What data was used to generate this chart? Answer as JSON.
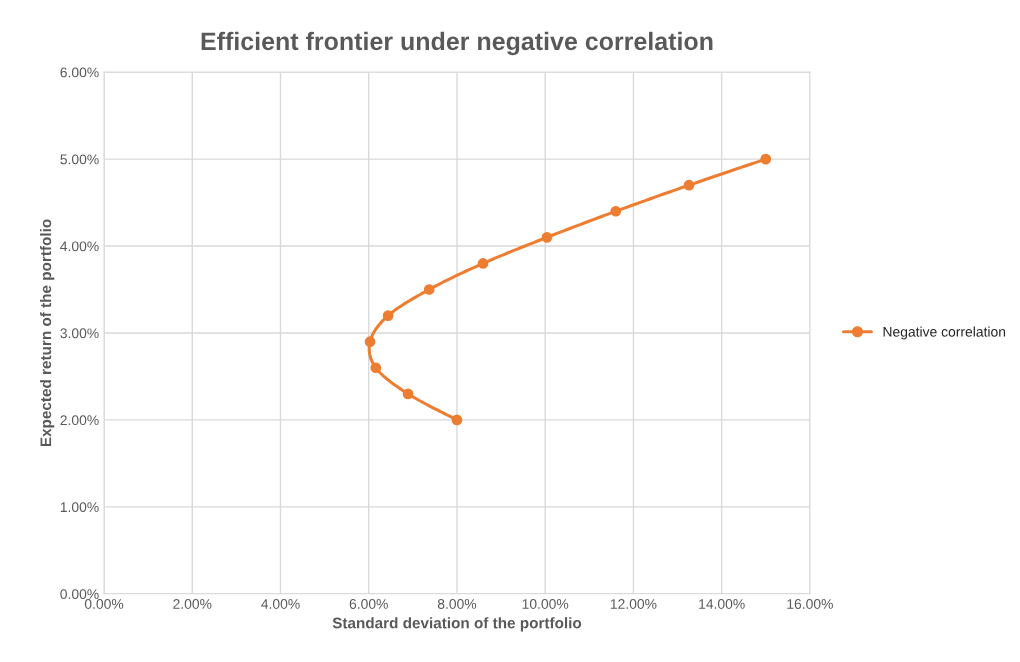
{
  "chart_data": {
    "type": "line",
    "title": "Efficient frontier under negative correlation",
    "xlabel": "Standard deviation of the portfolio",
    "ylabel": "Expected return of the portfolio",
    "x": [
      8.0,
      6.89,
      6.16,
      6.03,
      6.44,
      7.37,
      8.59,
      10.04,
      11.6,
      13.26,
      15.0
    ],
    "series": [
      {
        "name": "Negative correlation",
        "color": "#ed7d31",
        "values": [
          2.0,
          2.3,
          2.6,
          2.9,
          3.2,
          3.5,
          3.8,
          4.1,
          4.4,
          4.7,
          5.0
        ]
      }
    ],
    "xlim": [
      0,
      16
    ],
    "ylim": [
      0,
      6
    ],
    "xticks": [
      {
        "value": 0,
        "label": "0.00%"
      },
      {
        "value": 2,
        "label": "2.00%"
      },
      {
        "value": 4,
        "label": "4.00%"
      },
      {
        "value": 6,
        "label": "6.00%"
      },
      {
        "value": 8,
        "label": "8.00%"
      },
      {
        "value": 10,
        "label": "10.00%"
      },
      {
        "value": 12,
        "label": "12.00%"
      },
      {
        "value": 14,
        "label": "14.00%"
      },
      {
        "value": 16,
        "label": "16.00%"
      }
    ],
    "yticks": [
      {
        "value": 0,
        "label": "0.00%"
      },
      {
        "value": 1,
        "label": "1.00%"
      },
      {
        "value": 2,
        "label": "2.00%"
      },
      {
        "value": 3,
        "label": "3.00%"
      },
      {
        "value": 4,
        "label": "4.00%"
      },
      {
        "value": 5,
        "label": "5.00%"
      },
      {
        "value": 6,
        "label": "6.00%"
      }
    ],
    "grid": true,
    "legend": "right",
    "marker": "circle",
    "line_style": "solid"
  }
}
